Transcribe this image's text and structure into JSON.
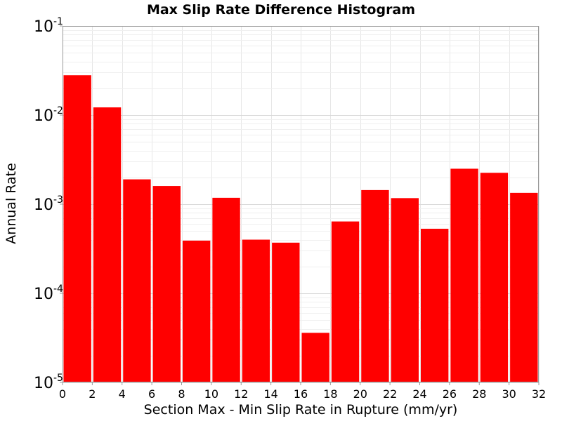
{
  "chart_data": {
    "type": "bar",
    "title": "Max Slip Rate Difference Histogram",
    "xlabel": "Section Max - Min Slip Rate in Rupture (mm/yr)",
    "ylabel": "Annual Rate",
    "xlim": [
      0,
      32
    ],
    "ylim": [
      1e-05,
      0.1
    ],
    "yscale": "log",
    "x_ticks": [
      "0",
      "2",
      "4",
      "6",
      "8",
      "10",
      "12",
      "14",
      "16",
      "18",
      "20",
      "22",
      "24",
      "26",
      "28",
      "30",
      "32"
    ],
    "y_ticks": [
      {
        "base": "10",
        "exp": "-5"
      },
      {
        "base": "10",
        "exp": "-4"
      },
      {
        "base": "10",
        "exp": "-3"
      },
      {
        "base": "10",
        "exp": "-2"
      },
      {
        "base": "10",
        "exp": "-1"
      }
    ],
    "bin_width": 2,
    "bins": [
      {
        "x0": 0,
        "x1": 2,
        "value": 0.028
      },
      {
        "x0": 2,
        "x1": 4,
        "value": 0.0122
      },
      {
        "x0": 4,
        "x1": 6,
        "value": 0.0019
      },
      {
        "x0": 6,
        "x1": 8,
        "value": 0.0016
      },
      {
        "x0": 8,
        "x1": 10,
        "value": 0.00039
      },
      {
        "x0": 10,
        "x1": 12,
        "value": 0.00118
      },
      {
        "x0": 12,
        "x1": 14,
        "value": 0.0004
      },
      {
        "x0": 14,
        "x1": 16,
        "value": 0.00037
      },
      {
        "x0": 16,
        "x1": 18,
        "value": 3.6e-05
      },
      {
        "x0": 18,
        "x1": 20,
        "value": 0.00064
      },
      {
        "x0": 20,
        "x1": 22,
        "value": 0.00144
      },
      {
        "x0": 22,
        "x1": 24,
        "value": 0.00117
      },
      {
        "x0": 24,
        "x1": 26,
        "value": 0.00053
      },
      {
        "x0": 26,
        "x1": 28,
        "value": 0.0025
      },
      {
        "x0": 28,
        "x1": 30,
        "value": 0.00225
      },
      {
        "x0": 30,
        "x1": 32,
        "value": 0.00134
      }
    ],
    "bar_color": "#ff0000",
    "grid": true,
    "legend": "none"
  }
}
